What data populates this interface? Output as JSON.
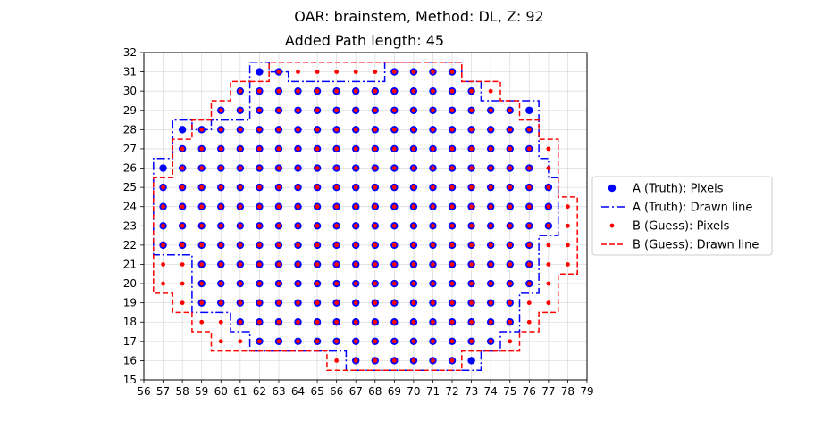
{
  "chart_data": {
    "type": "scatter",
    "title": "OAR: brainstem, Method: DL, Z: 92",
    "subtitle": "Added Path length: 45",
    "xlabel": "",
    "ylabel": "",
    "xlim": [
      56,
      79
    ],
    "ylim": [
      15,
      32
    ],
    "xticks": [
      56,
      57,
      58,
      59,
      60,
      61,
      62,
      63,
      64,
      65,
      66,
      67,
      68,
      69,
      70,
      71,
      72,
      73,
      74,
      75,
      76,
      77,
      78,
      79
    ],
    "yticks": [
      15,
      16,
      17,
      18,
      19,
      20,
      21,
      22,
      23,
      24,
      25,
      26,
      27,
      28,
      29,
      30,
      31,
      32
    ],
    "grid": true,
    "legend_position": "right",
    "colors": {
      "truth": "#0000ff",
      "guess": "#ff0000"
    },
    "series": [
      {
        "name": "A (Truth): Pixels",
        "kind": "points",
        "rows": [
          {
            "y": 31,
            "x": [
              62,
              63,
              69,
              70,
              71,
              72
            ]
          },
          {
            "y": 30,
            "x": [
              61,
              62,
              63,
              64,
              65,
              66,
              67,
              68,
              69,
              70,
              71,
              72,
              73
            ]
          },
          {
            "y": 29,
            "x": [
              60,
              61,
              62,
              63,
              64,
              65,
              66,
              67,
              68,
              69,
              70,
              71,
              72,
              73,
              74,
              75,
              76
            ]
          },
          {
            "y": 28,
            "x": [
              58,
              59,
              60,
              61,
              62,
              63,
              64,
              65,
              66,
              67,
              68,
              69,
              70,
              71,
              72,
              73,
              74,
              75,
              76
            ]
          },
          {
            "y": 27,
            "x": [
              58,
              59,
              60,
              61,
              62,
              63,
              64,
              65,
              66,
              67,
              68,
              69,
              70,
              71,
              72,
              73,
              74,
              75,
              76
            ]
          },
          {
            "y": 26,
            "x": [
              57,
              58,
              59,
              60,
              61,
              62,
              63,
              64,
              65,
              66,
              67,
              68,
              69,
              70,
              71,
              72,
              73,
              74,
              75,
              76
            ]
          },
          {
            "y": 25,
            "x": [
              57,
              58,
              59,
              60,
              61,
              62,
              63,
              64,
              65,
              66,
              67,
              68,
              69,
              70,
              71,
              72,
              73,
              74,
              75,
              76,
              77
            ]
          },
          {
            "y": 24,
            "x": [
              57,
              58,
              59,
              60,
              61,
              62,
              63,
              64,
              65,
              66,
              67,
              68,
              69,
              70,
              71,
              72,
              73,
              74,
              75,
              76,
              77
            ]
          },
          {
            "y": 23,
            "x": [
              57,
              58,
              59,
              60,
              61,
              62,
              63,
              64,
              65,
              66,
              67,
              68,
              69,
              70,
              71,
              72,
              73,
              74,
              75,
              76,
              77
            ]
          },
          {
            "y": 22,
            "x": [
              57,
              58,
              59,
              60,
              61,
              62,
              63,
              64,
              65,
              66,
              67,
              68,
              69,
              70,
              71,
              72,
              73,
              74,
              75,
              76
            ]
          },
          {
            "y": 21,
            "x": [
              59,
              60,
              61,
              62,
              63,
              64,
              65,
              66,
              67,
              68,
              69,
              70,
              71,
              72,
              73,
              74,
              75,
              76
            ]
          },
          {
            "y": 20,
            "x": [
              59,
              60,
              61,
              62,
              63,
              64,
              65,
              66,
              67,
              68,
              69,
              70,
              71,
              72,
              73,
              74,
              75,
              76
            ]
          },
          {
            "y": 19,
            "x": [
              59,
              60,
              61,
              62,
              63,
              64,
              65,
              66,
              67,
              68,
              69,
              70,
              71,
              72,
              73,
              74,
              75
            ]
          },
          {
            "y": 18,
            "x": [
              61,
              62,
              63,
              64,
              65,
              66,
              67,
              68,
              69,
              70,
              71,
              72,
              73,
              74,
              75
            ]
          },
          {
            "y": 17,
            "x": [
              62,
              63,
              64,
              65,
              66,
              67,
              68,
              69,
              70,
              71,
              72,
              73,
              74
            ]
          },
          {
            "y": 16,
            "x": [
              67,
              68,
              69,
              70,
              71,
              72,
              73
            ]
          }
        ]
      },
      {
        "name": "A (Truth): Drawn line",
        "kind": "line",
        "style": "dashdot",
        "points": [
          [
            61.5,
            31.5
          ],
          [
            62.5,
            31.5
          ],
          [
            62.5,
            31.0
          ],
          [
            63.5,
            31.0
          ],
          [
            63.5,
            30.5
          ],
          [
            68.5,
            30.5
          ],
          [
            68.5,
            31.5
          ],
          [
            72.5,
            31.5
          ],
          [
            72.5,
            30.5
          ],
          [
            73.5,
            30.5
          ],
          [
            73.5,
            29.5
          ],
          [
            75.5,
            29.5
          ],
          [
            76.5,
            29.5
          ],
          [
            76.5,
            28.5
          ],
          [
            76.5,
            26.5
          ],
          [
            77.0,
            26.5
          ],
          [
            77.0,
            25.5
          ],
          [
            77.5,
            25.5
          ],
          [
            77.5,
            22.5
          ],
          [
            76.5,
            22.5
          ],
          [
            76.5,
            19.5
          ],
          [
            75.5,
            19.5
          ],
          [
            75.5,
            17.5
          ],
          [
            74.5,
            17.5
          ],
          [
            74.5,
            16.5
          ],
          [
            73.5,
            16.5
          ],
          [
            73.5,
            15.5
          ],
          [
            66.5,
            15.5
          ],
          [
            66.5,
            16.5
          ],
          [
            61.5,
            16.5
          ],
          [
            61.5,
            17.5
          ],
          [
            60.5,
            17.5
          ],
          [
            60.5,
            18.5
          ],
          [
            58.5,
            18.5
          ],
          [
            58.5,
            21.5
          ],
          [
            56.5,
            21.5
          ],
          [
            56.5,
            26.5
          ],
          [
            57.5,
            26.5
          ],
          [
            57.5,
            27.5
          ],
          [
            57.5,
            28.5
          ],
          [
            58.5,
            28.5
          ],
          [
            58.5,
            28.0
          ],
          [
            59.5,
            28.0
          ],
          [
            59.5,
            28.5
          ],
          [
            61.5,
            28.5
          ],
          [
            61.5,
            30.5
          ],
          [
            61.5,
            31.5
          ]
        ]
      },
      {
        "name": "B (Guess): Pixels",
        "kind": "points",
        "rows": [
          {
            "y": 31,
            "x": [
              63,
              64,
              65,
              66,
              67,
              68,
              69,
              70,
              71,
              72
            ]
          },
          {
            "y": 30,
            "x": [
              61,
              62,
              63,
              64,
              65,
              66,
              67,
              68,
              69,
              70,
              71,
              72,
              73,
              74
            ]
          },
          {
            "y": 29,
            "x": [
              60,
              61,
              62,
              63,
              64,
              65,
              66,
              67,
              68,
              69,
              70,
              71,
              72,
              73,
              74,
              75
            ]
          },
          {
            "y": 28,
            "x": [
              59,
              60,
              61,
              62,
              63,
              64,
              65,
              66,
              67,
              68,
              69,
              70,
              71,
              72,
              73,
              74,
              75,
              76
            ]
          },
          {
            "y": 27,
            "x": [
              58,
              59,
              60,
              61,
              62,
              63,
              64,
              65,
              66,
              67,
              68,
              69,
              70,
              71,
              72,
              73,
              74,
              75,
              76,
              77
            ]
          },
          {
            "y": 26,
            "x": [
              58,
              59,
              60,
              61,
              62,
              63,
              64,
              65,
              66,
              67,
              68,
              69,
              70,
              71,
              72,
              73,
              74,
              75,
              76,
              77
            ]
          },
          {
            "y": 25,
            "x": [
              57,
              58,
              59,
              60,
              61,
              62,
              63,
              64,
              65,
              66,
              67,
              68,
              69,
              70,
              71,
              72,
              73,
              74,
              75,
              76,
              77
            ]
          },
          {
            "y": 24,
            "x": [
              57,
              58,
              59,
              60,
              61,
              62,
              63,
              64,
              65,
              66,
              67,
              68,
              69,
              70,
              71,
              72,
              73,
              74,
              75,
              76,
              77,
              78
            ]
          },
          {
            "y": 23,
            "x": [
              57,
              58,
              59,
              60,
              61,
              62,
              63,
              64,
              65,
              66,
              67,
              68,
              69,
              70,
              71,
              72,
              73,
              74,
              75,
              76,
              77,
              78
            ]
          },
          {
            "y": 22,
            "x": [
              57,
              58,
              59,
              60,
              61,
              62,
              63,
              64,
              65,
              66,
              67,
              68,
              69,
              70,
              71,
              72,
              73,
              74,
              75,
              76,
              77,
              78
            ]
          },
          {
            "y": 21,
            "x": [
              57,
              58,
              59,
              60,
              61,
              62,
              63,
              64,
              65,
              66,
              67,
              68,
              69,
              70,
              71,
              72,
              73,
              74,
              75,
              76,
              77,
              78
            ]
          },
          {
            "y": 20,
            "x": [
              57,
              58,
              59,
              60,
              61,
              62,
              63,
              64,
              65,
              66,
              67,
              68,
              69,
              70,
              71,
              72,
              73,
              74,
              75,
              76,
              77
            ]
          },
          {
            "y": 19,
            "x": [
              58,
              59,
              60,
              61,
              62,
              63,
              64,
              65,
              66,
              67,
              68,
              69,
              70,
              71,
              72,
              73,
              74,
              75,
              76,
              77
            ]
          },
          {
            "y": 18,
            "x": [
              59,
              60,
              61,
              62,
              63,
              64,
              65,
              66,
              67,
              68,
              69,
              70,
              71,
              72,
              73,
              74,
              75,
              76
            ]
          },
          {
            "y": 17,
            "x": [
              60,
              61,
              62,
              63,
              64,
              65,
              66,
              67,
              68,
              69,
              70,
              71,
              72,
              73,
              74,
              75
            ]
          },
          {
            "y": 16,
            "x": [
              66,
              67,
              68,
              69,
              70,
              71,
              72
            ]
          }
        ]
      },
      {
        "name": "B (Guess): Drawn line",
        "kind": "line",
        "style": "dashed",
        "points": [
          [
            61.5,
            30.5
          ],
          [
            62.5,
            30.5
          ],
          [
            62.5,
            31.5
          ],
          [
            72.5,
            31.5
          ],
          [
            72.5,
            30.5
          ],
          [
            74.5,
            30.5
          ],
          [
            74.5,
            29.5
          ],
          [
            75.5,
            29.5
          ],
          [
            75.5,
            28.5
          ],
          [
            76.5,
            28.5
          ],
          [
            76.5,
            27.5
          ],
          [
            77.5,
            27.5
          ],
          [
            77.5,
            24.5
          ],
          [
            78.5,
            24.5
          ],
          [
            78.5,
            20.5
          ],
          [
            77.5,
            20.5
          ],
          [
            77.5,
            18.5
          ],
          [
            76.5,
            18.5
          ],
          [
            76.5,
            17.5
          ],
          [
            75.5,
            17.5
          ],
          [
            75.5,
            16.5
          ],
          [
            72.5,
            16.5
          ],
          [
            72.5,
            15.5
          ],
          [
            65.5,
            15.5
          ],
          [
            65.5,
            16.5
          ],
          [
            59.5,
            16.5
          ],
          [
            59.5,
            17.5
          ],
          [
            58.5,
            17.5
          ],
          [
            58.5,
            18.5
          ],
          [
            57.5,
            18.5
          ],
          [
            57.5,
            19.5
          ],
          [
            56.5,
            19.5
          ],
          [
            56.5,
            25.5
          ],
          [
            57.5,
            25.5
          ],
          [
            57.5,
            27.5
          ],
          [
            58.5,
            27.5
          ],
          [
            58.5,
            28.5
          ],
          [
            59.5,
            28.5
          ],
          [
            59.5,
            29.5
          ],
          [
            60.5,
            29.5
          ],
          [
            60.5,
            30.5
          ],
          [
            61.5,
            30.5
          ]
        ]
      }
    ]
  }
}
